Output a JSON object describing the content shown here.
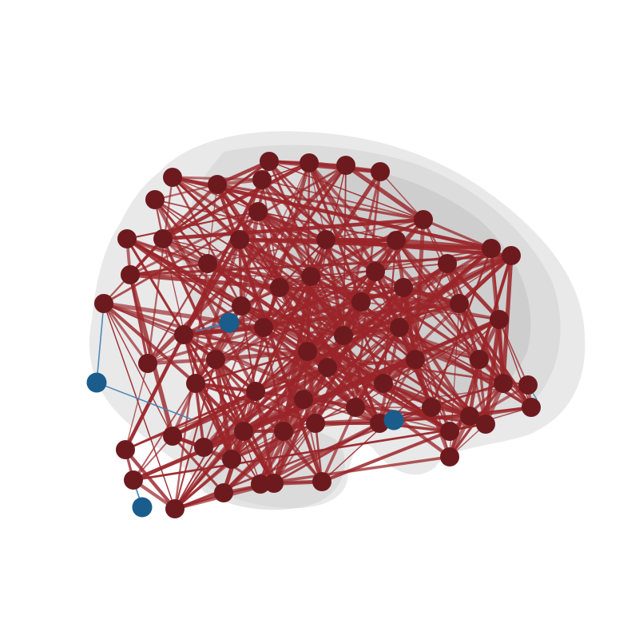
{
  "figure": {
    "kind": "brain-connectome",
    "view": "sagittal-left",
    "colors": {
      "background": "#ffffff",
      "brain_light": "#e9e9e9",
      "brain_mid": "#d2d2d2",
      "brain_dark": "#bdbdbd",
      "node_dense": "#6d1a1e",
      "node_sparse": "#1a5d8c",
      "edge_dense": "#9a2529",
      "edge_sparse": "#3f7fb4"
    },
    "legend": "none",
    "labels": "none"
  }
}
